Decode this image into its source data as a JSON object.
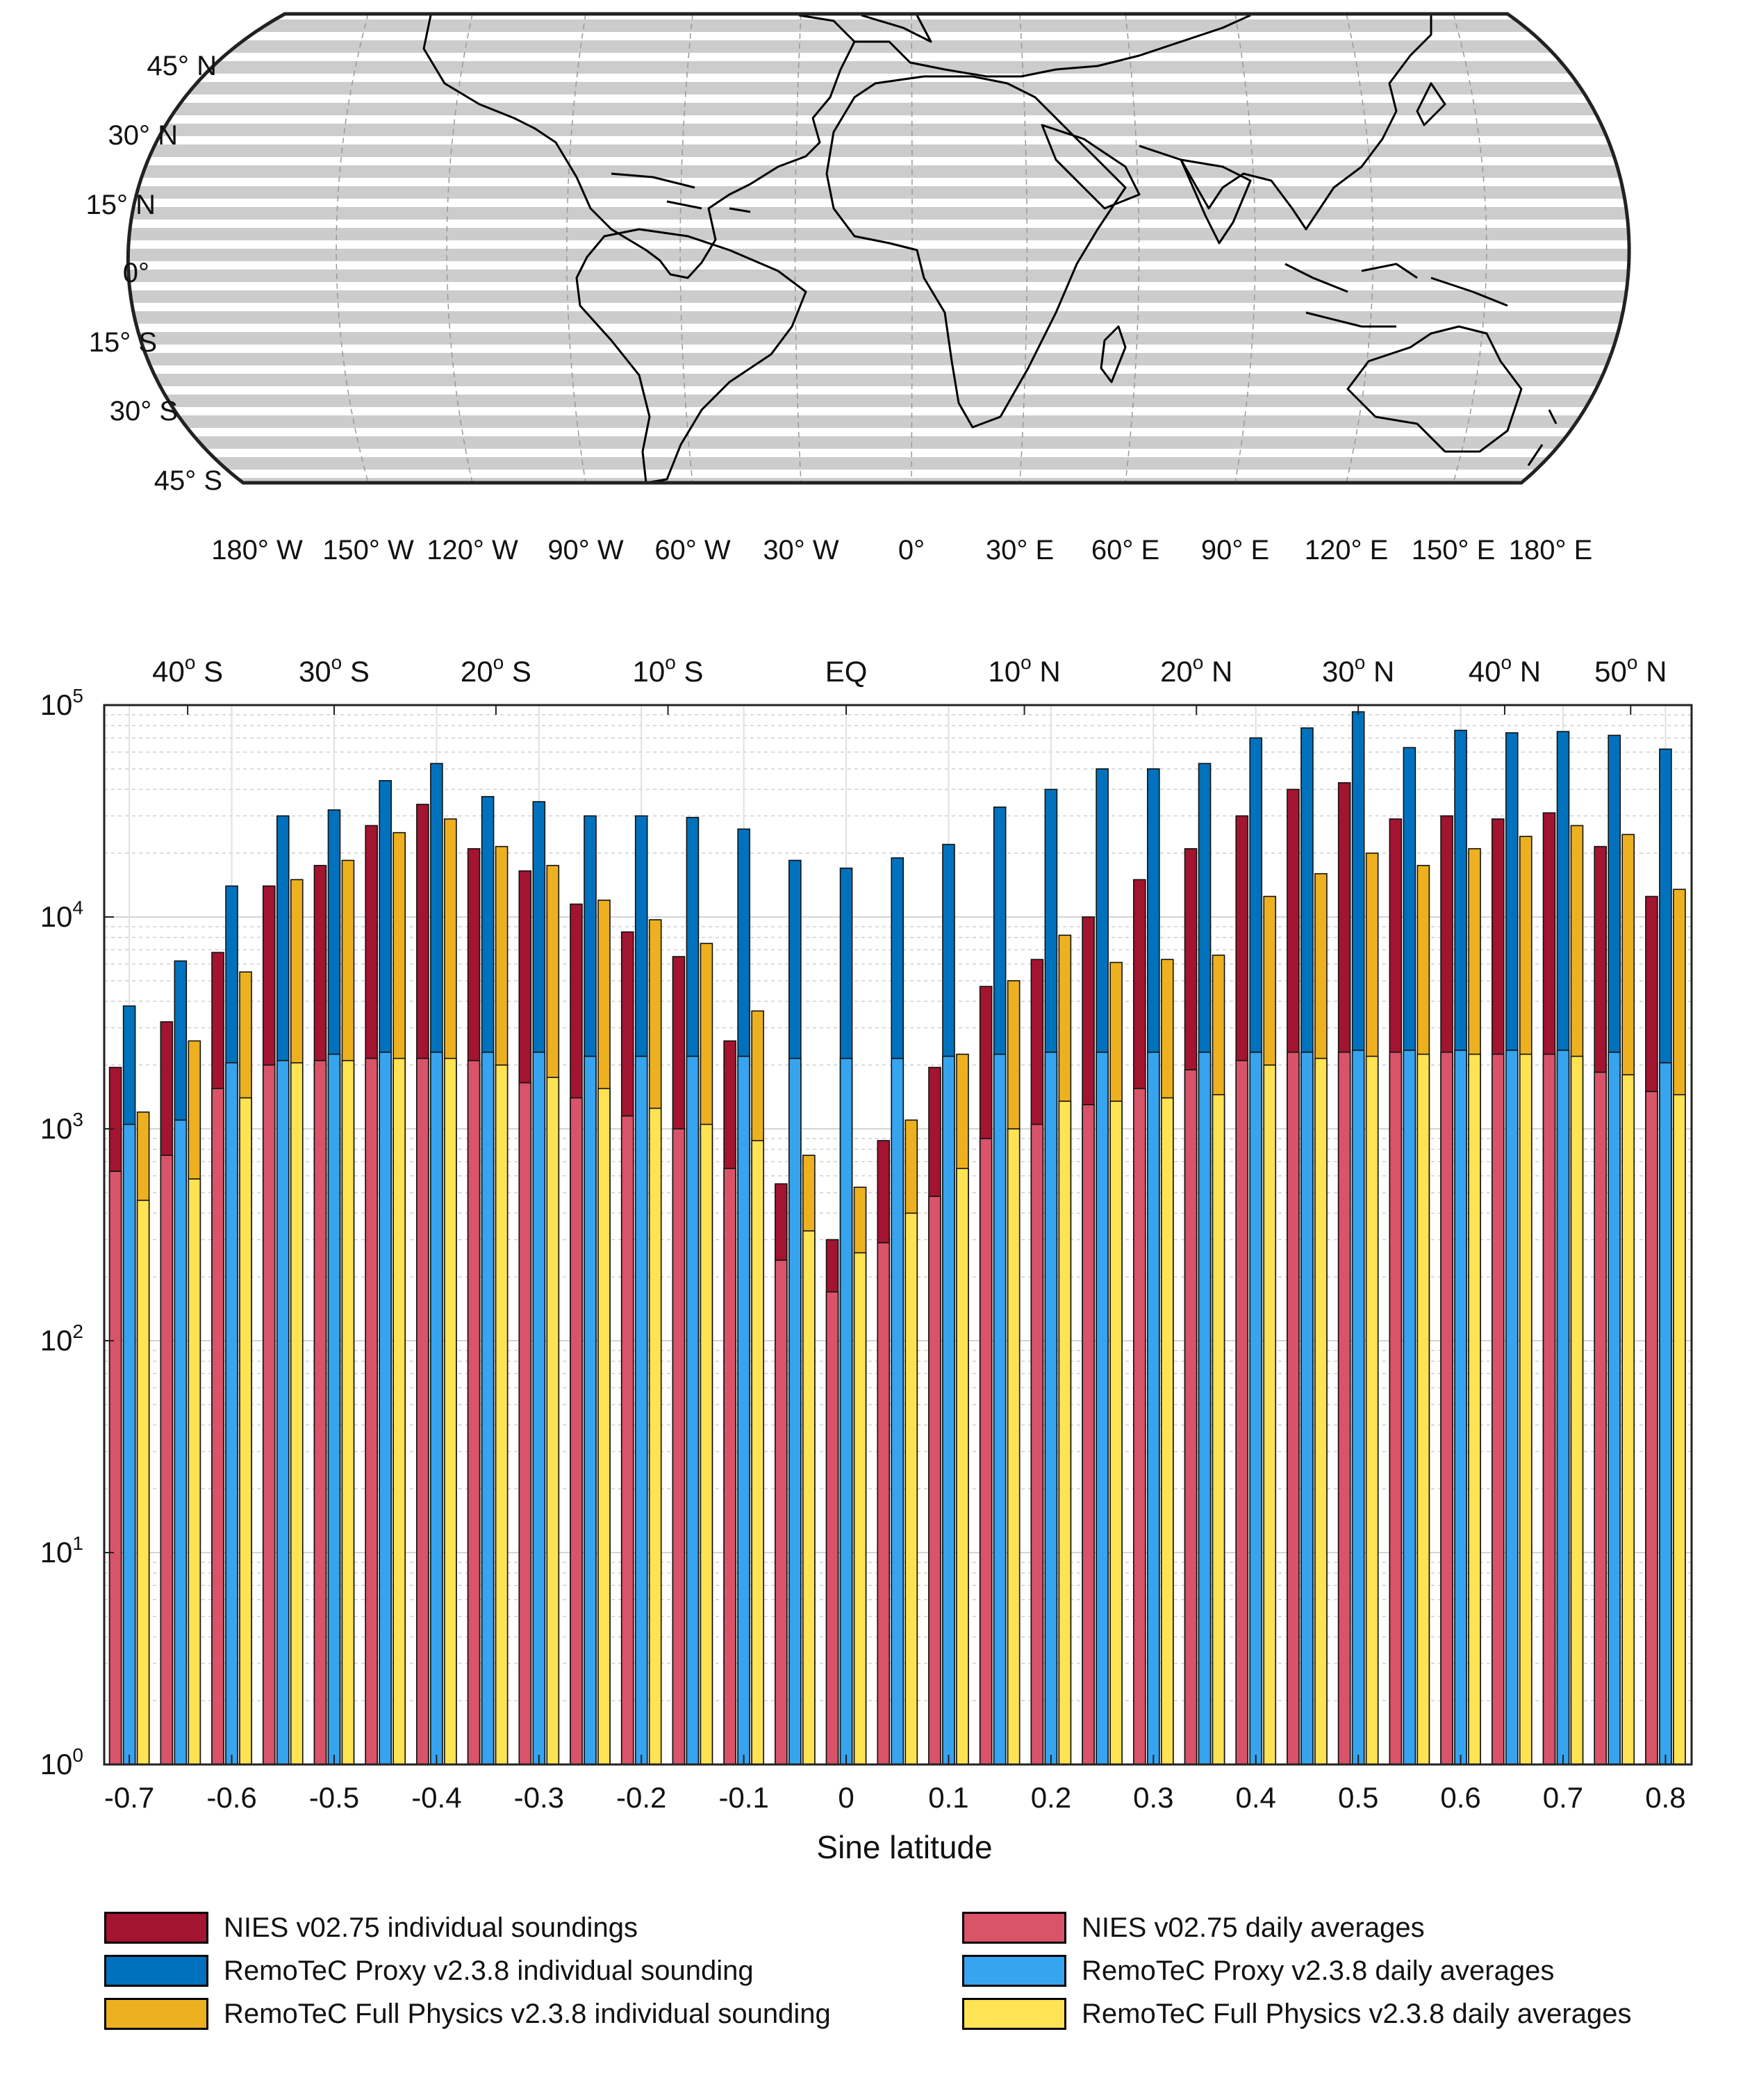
{
  "map": {
    "lat_labels": [
      "45° N",
      "30° N",
      "15° N",
      "0°",
      "15° S",
      "30° S",
      "45° S"
    ],
    "lon_labels": [
      "180° W",
      "150° W",
      "120° W",
      "90° W",
      "60° W",
      "30° W",
      "0°",
      "30° E",
      "60° E",
      "90° E",
      "120° E",
      "150° E",
      "180° E"
    ],
    "band_color": "#cccccc"
  },
  "chart_data": {
    "type": "bar",
    "scale": "log",
    "xlabel": "Sine latitude",
    "ylabel": "",
    "ylim": [
      1,
      100000
    ],
    "y_ticks": [
      {
        "base": "10",
        "exp": "0"
      },
      {
        "base": "10",
        "exp": "1"
      },
      {
        "base": "10",
        "exp": "2"
      },
      {
        "base": "10",
        "exp": "3"
      },
      {
        "base": "10",
        "exp": "4"
      },
      {
        "base": "10",
        "exp": "5"
      }
    ],
    "x_tick_values": [
      -0.7,
      -0.6,
      -0.5,
      -0.4,
      -0.3,
      -0.2,
      -0.1,
      0,
      0.1,
      0.2,
      0.3,
      0.4,
      0.5,
      0.6,
      0.7,
      0.8
    ],
    "x_tick_labels": [
      "-0.7",
      "-0.6",
      "-0.5",
      "-0.4",
      "-0.3",
      "-0.2",
      "-0.1",
      "0",
      "0.1",
      "0.2",
      "0.3",
      "0.4",
      "0.5",
      "0.6",
      "0.7",
      "0.8"
    ],
    "top_axis": [
      {
        "value": -0.643,
        "deg": "40",
        "sup": "o",
        "dir": "S"
      },
      {
        "value": -0.5,
        "deg": "30",
        "sup": "o",
        "dir": "S"
      },
      {
        "value": -0.342,
        "deg": "20",
        "sup": "o",
        "dir": "S"
      },
      {
        "value": -0.174,
        "deg": "10",
        "sup": "o",
        "dir": "S"
      },
      {
        "value": 0,
        "deg": "EQ",
        "sup": "",
        "dir": ""
      },
      {
        "value": 0.174,
        "deg": "10",
        "sup": "o",
        "dir": "N"
      },
      {
        "value": 0.342,
        "deg": "20",
        "sup": "o",
        "dir": "N"
      },
      {
        "value": 0.5,
        "deg": "30",
        "sup": "o",
        "dir": "N"
      },
      {
        "value": 0.643,
        "deg": "40",
        "sup": "o",
        "dir": "N"
      },
      {
        "value": 0.766,
        "deg": "50",
        "sup": "o",
        "dir": "N"
      }
    ],
    "x": [
      -0.7,
      -0.65,
      -0.6,
      -0.55,
      -0.5,
      -0.45,
      -0.4,
      -0.35,
      -0.3,
      -0.25,
      -0.2,
      -0.15,
      -0.1,
      -0.05,
      0.0,
      0.05,
      0.1,
      0.15,
      0.2,
      0.25,
      0.3,
      0.35,
      0.4,
      0.45,
      0.5,
      0.55,
      0.6,
      0.65,
      0.7,
      0.75,
      0.8
    ],
    "series": [
      {
        "name": "NIES v02.75 individual soundings",
        "color": "#a2142f",
        "values": [
          1950,
          3200,
          6800,
          14000,
          17500,
          27000,
          34000,
          21000,
          16500,
          11500,
          8500,
          6500,
          2600,
          550,
          300,
          880,
          1950,
          4700,
          6300,
          10000,
          15000,
          21000,
          30000,
          40000,
          43000,
          29000,
          30000,
          29000,
          31000,
          21500,
          12500
        ]
      },
      {
        "name": "RemoTeC Proxy v2.3.8 individual sounding",
        "color": "#0072bd",
        "values": [
          3800,
          6200,
          14000,
          30000,
          32000,
          44000,
          53000,
          37000,
          35000,
          30000,
          30000,
          29500,
          26000,
          18500,
          17000,
          19000,
          22000,
          33000,
          40000,
          50000,
          50000,
          53000,
          70000,
          78000,
          93000,
          63000,
          76000,
          74000,
          75000,
          72000,
          62000
        ]
      },
      {
        "name": "RemoTeC Full Physics v2.3.8 individual sounding",
        "color": "#edb120",
        "values": [
          1200,
          2600,
          5500,
          15000,
          18500,
          25000,
          29000,
          21500,
          17500,
          12000,
          9700,
          7500,
          3600,
          750,
          530,
          1100,
          2250,
          5000,
          8200,
          6100,
          6300,
          6600,
          12500,
          16000,
          20000,
          17500,
          21000,
          24000,
          27000,
          24500,
          13500
        ]
      },
      {
        "name": "NIES v02.75 daily averages",
        "color": "#d95369",
        "values": [
          630,
          750,
          1550,
          2000,
          2100,
          2150,
          2150,
          2100,
          1650,
          1400,
          1150,
          1000,
          650,
          240,
          170,
          290,
          480,
          900,
          1050,
          1300,
          1550,
          1900,
          2100,
          2300,
          2300,
          2300,
          2300,
          2250,
          2250,
          1850,
          1500
        ]
      },
      {
        "name": "RemoTeC Proxy v2.3.8 daily averages",
        "color": "#36a4ef",
        "values": [
          1050,
          1100,
          2050,
          2100,
          2250,
          2300,
          2300,
          2300,
          2300,
          2200,
          2200,
          2200,
          2200,
          2150,
          2150,
          2150,
          2200,
          2250,
          2300,
          2300,
          2300,
          2300,
          2300,
          2300,
          2350,
          2350,
          2350,
          2350,
          2350,
          2300,
          2050
        ]
      },
      {
        "name": "RemoTeC Full Physics v2.3.8 daily averages",
        "color": "#ffe352",
        "values": [
          460,
          580,
          1400,
          2050,
          2100,
          2150,
          2150,
          2000,
          1750,
          1550,
          1250,
          1050,
          880,
          330,
          260,
          400,
          650,
          1000,
          1350,
          1350,
          1400,
          1450,
          2000,
          2150,
          2200,
          2250,
          2250,
          2250,
          2200,
          1800,
          1450
        ]
      }
    ]
  },
  "legend": {
    "items": [
      {
        "label": "NIES v02.75 individual soundings",
        "color": "#a2142f"
      },
      {
        "label": "RemoTeC Proxy v2.3.8 individual sounding",
        "color": "#0072bd"
      },
      {
        "label": "RemoTeC Full Physics v2.3.8 individual sounding",
        "color": "#edb120"
      },
      {
        "label": "NIES v02.75 daily averages",
        "color": "#d95369"
      },
      {
        "label": "RemoTeC Proxy v2.3.8 daily averages",
        "color": "#36a4ef"
      },
      {
        "label": "RemoTeC Full Physics v2.3.8 daily averages",
        "color": "#ffe352"
      }
    ]
  }
}
